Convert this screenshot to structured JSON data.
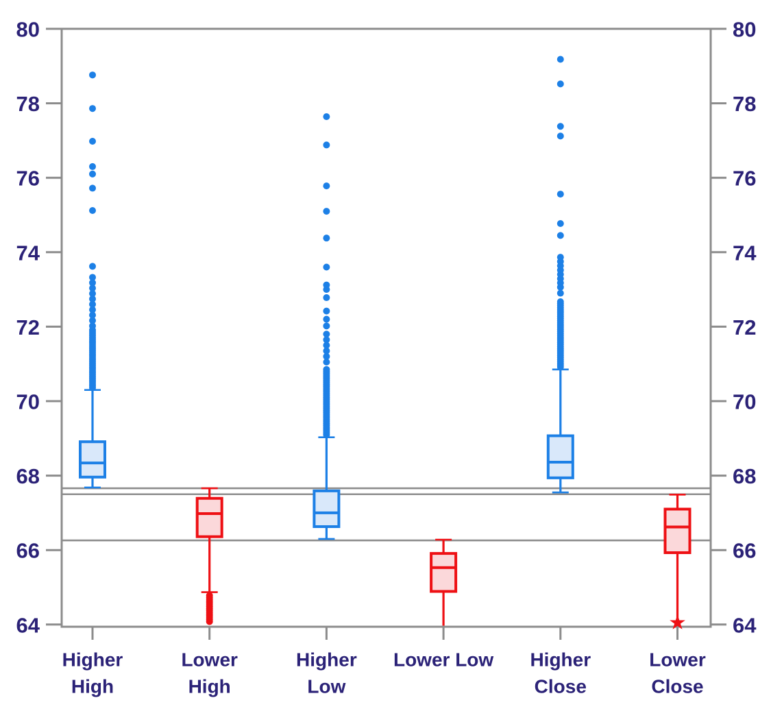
{
  "chart_data": {
    "type": "boxplot",
    "title": "",
    "xlabel": "",
    "ylabel": "",
    "y_axis": {
      "min": 64,
      "max": 80,
      "ticks": [
        64,
        66,
        68,
        70,
        72,
        74,
        76,
        78,
        80
      ],
      "sides": "both",
      "grid": false
    },
    "reference_lines": [
      67.66,
      67.5,
      66.26
    ],
    "colors": {
      "blue": "#1d80e6",
      "blue_fill": "#d9e8fa",
      "red": "#ee1014",
      "red_fill": "#fbd8da",
      "axis_gray": "#8c8c8c",
      "label_navy": "#2b2277",
      "background": "#ffffff"
    },
    "categories": [
      {
        "id": "higher-high",
        "label_lines": [
          "Higher",
          "High"
        ],
        "color": "blue",
        "whisker_low": 67.68,
        "q1": 67.96,
        "median": 68.34,
        "q3": 68.91,
        "whisker_high": 70.3,
        "cap_low": true,
        "cap_high": true,
        "dense": [
          {
            "from": 70.36,
            "to": 71.93,
            "step": 0.05
          },
          {
            "from": 72.02,
            "to": 73.44,
            "step": 0.145
          }
        ],
        "dots": [
          73.62,
          75.12,
          75.72,
          76.1,
          76.3,
          76.98,
          77.86,
          78.76
        ]
      },
      {
        "id": "lower-high",
        "label_lines": [
          "Lower",
          "High"
        ],
        "color": "red",
        "whisker_low": 64.87,
        "q1": 66.36,
        "median": 66.98,
        "q3": 67.39,
        "whisker_high": 67.66,
        "cap_low": true,
        "cap_high": true,
        "dense": [
          {
            "from": 64.08,
            "to": 64.8,
            "step": 0.05
          }
        ],
        "dots": []
      },
      {
        "id": "higher-low",
        "label_lines": [
          "Higher",
          "Low"
        ],
        "color": "blue",
        "whisker_low": 66.3,
        "q1": 66.63,
        "median": 67.0,
        "q3": 67.59,
        "whisker_high": 69.03,
        "cap_low": true,
        "cap_high": true,
        "dense": [
          {
            "from": 69.1,
            "to": 70.88,
            "step": 0.05
          },
          {
            "from": 71.05,
            "to": 71.8,
            "step": 0.15
          }
        ],
        "dots": [
          72.02,
          72.2,
          72.42,
          72.78,
          73.0,
          73.12,
          73.6,
          74.38,
          75.1,
          75.78,
          76.88,
          77.64
        ]
      },
      {
        "id": "lower-low",
        "label_lines": [
          "Lower Low"
        ],
        "color": "red",
        "whisker_low": 63.97,
        "q1": 64.89,
        "median": 65.53,
        "q3": 65.91,
        "whisker_high": 66.28,
        "cap_low": false,
        "cap_high": true,
        "dense": [],
        "dots": []
      },
      {
        "id": "higher-close",
        "label_lines": [
          "Higher",
          "Close"
        ],
        "color": "blue",
        "whisker_low": 67.55,
        "q1": 67.94,
        "median": 68.36,
        "q3": 69.07,
        "whisker_high": 70.85,
        "cap_low": true,
        "cap_high": true,
        "dense": [
          {
            "from": 70.92,
            "to": 72.68,
            "step": 0.05
          },
          {
            "from": 73.06,
            "to": 73.88,
            "step": 0.115
          }
        ],
        "dots": [
          72.9,
          74.45,
          74.77,
          75.56,
          77.12,
          77.38,
          78.52,
          79.18
        ]
      },
      {
        "id": "lower-close",
        "label_lines": [
          "Lower",
          "Close"
        ],
        "color": "red",
        "whisker_low": 64.16,
        "q1": 65.93,
        "median": 66.62,
        "q3": 67.1,
        "whisker_high": 67.49,
        "cap_low": false,
        "cap_high": true,
        "dense": [],
        "dots": [],
        "star": 64.08
      }
    ]
  }
}
